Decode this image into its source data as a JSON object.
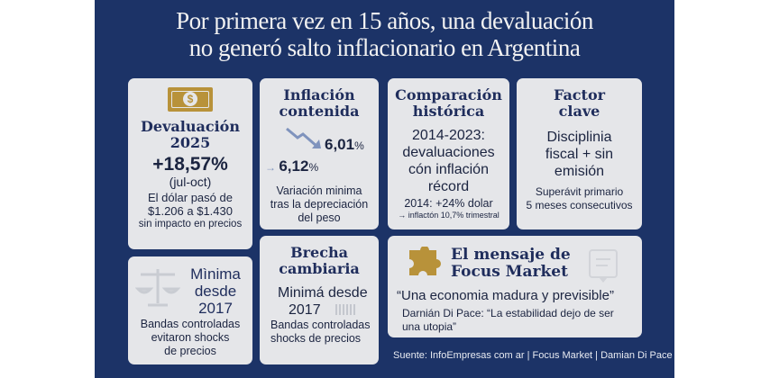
{
  "title": [
    "Por primera vez en 15 años, una devaluación",
    "no generó salto inflacionario en Argentina"
  ],
  "colors": {
    "background": "#1c3367",
    "card": "#e5e6e9",
    "heading": "#1f2d5c",
    "accent_gold": "#b8923a"
  },
  "cards": {
    "devaluacion": {
      "icon": "dollar-bill-icon",
      "heading": [
        "Devaluación",
        "2025"
      ],
      "value": "+18,57%",
      "period": "(jul-oct)",
      "text": [
        "El dólar pasó de",
        "$1.206 a $1.430"
      ],
      "note": "sin impacto en precios"
    },
    "inflacion": {
      "icon": "down-trend-arrow-icon",
      "heading": [
        "Inflación",
        "contenida"
      ],
      "value_1": "6,01",
      "value_2": "6,12",
      "unit": "%",
      "text": [
        "Variación minima",
        "tras la depreciación",
        "del peso"
      ]
    },
    "comparacion": {
      "heading": [
        "Comparación",
        "histórica"
      ],
      "big": [
        "2014-2023:",
        "devaluaciones",
        "cón inflación",
        "récord"
      ],
      "text": "2014: +24% dolar",
      "note": "→ inflactón 10,7% trimestral"
    },
    "factor": {
      "heading": [
        "Factor",
        "clave"
      ],
      "big": [
        "Disciplinia",
        "fiscal + sin",
        "emisión"
      ],
      "text": [
        "Superávit primario",
        "5 meses consecutivos"
      ]
    },
    "minima": {
      "icon": "scale-icon",
      "heading": [
        "Mìnima",
        "desde",
        "2017"
      ],
      "text": [
        "Bandas controladas",
        "evitaron shocks",
        "de precios"
      ]
    },
    "brecha": {
      "heading": [
        "Brecha",
        "cambiaria"
      ],
      "big": [
        "Minimá desde",
        "2017"
      ],
      "text": [
        "Bandas controladas",
        "shocks de precios"
      ]
    },
    "mensaje": {
      "icon": "puzzle-icon",
      "heading": [
        "El mensaje de",
        "Focus Market"
      ],
      "quote": "“Una economia madura y previsible”",
      "attribution": "Darnián Di Pace: “La estabilidad dejo de ser una utopia”"
    }
  },
  "source": "Suente: InfoEmpresas com ar | Focus Market | Damian Di Pace"
}
